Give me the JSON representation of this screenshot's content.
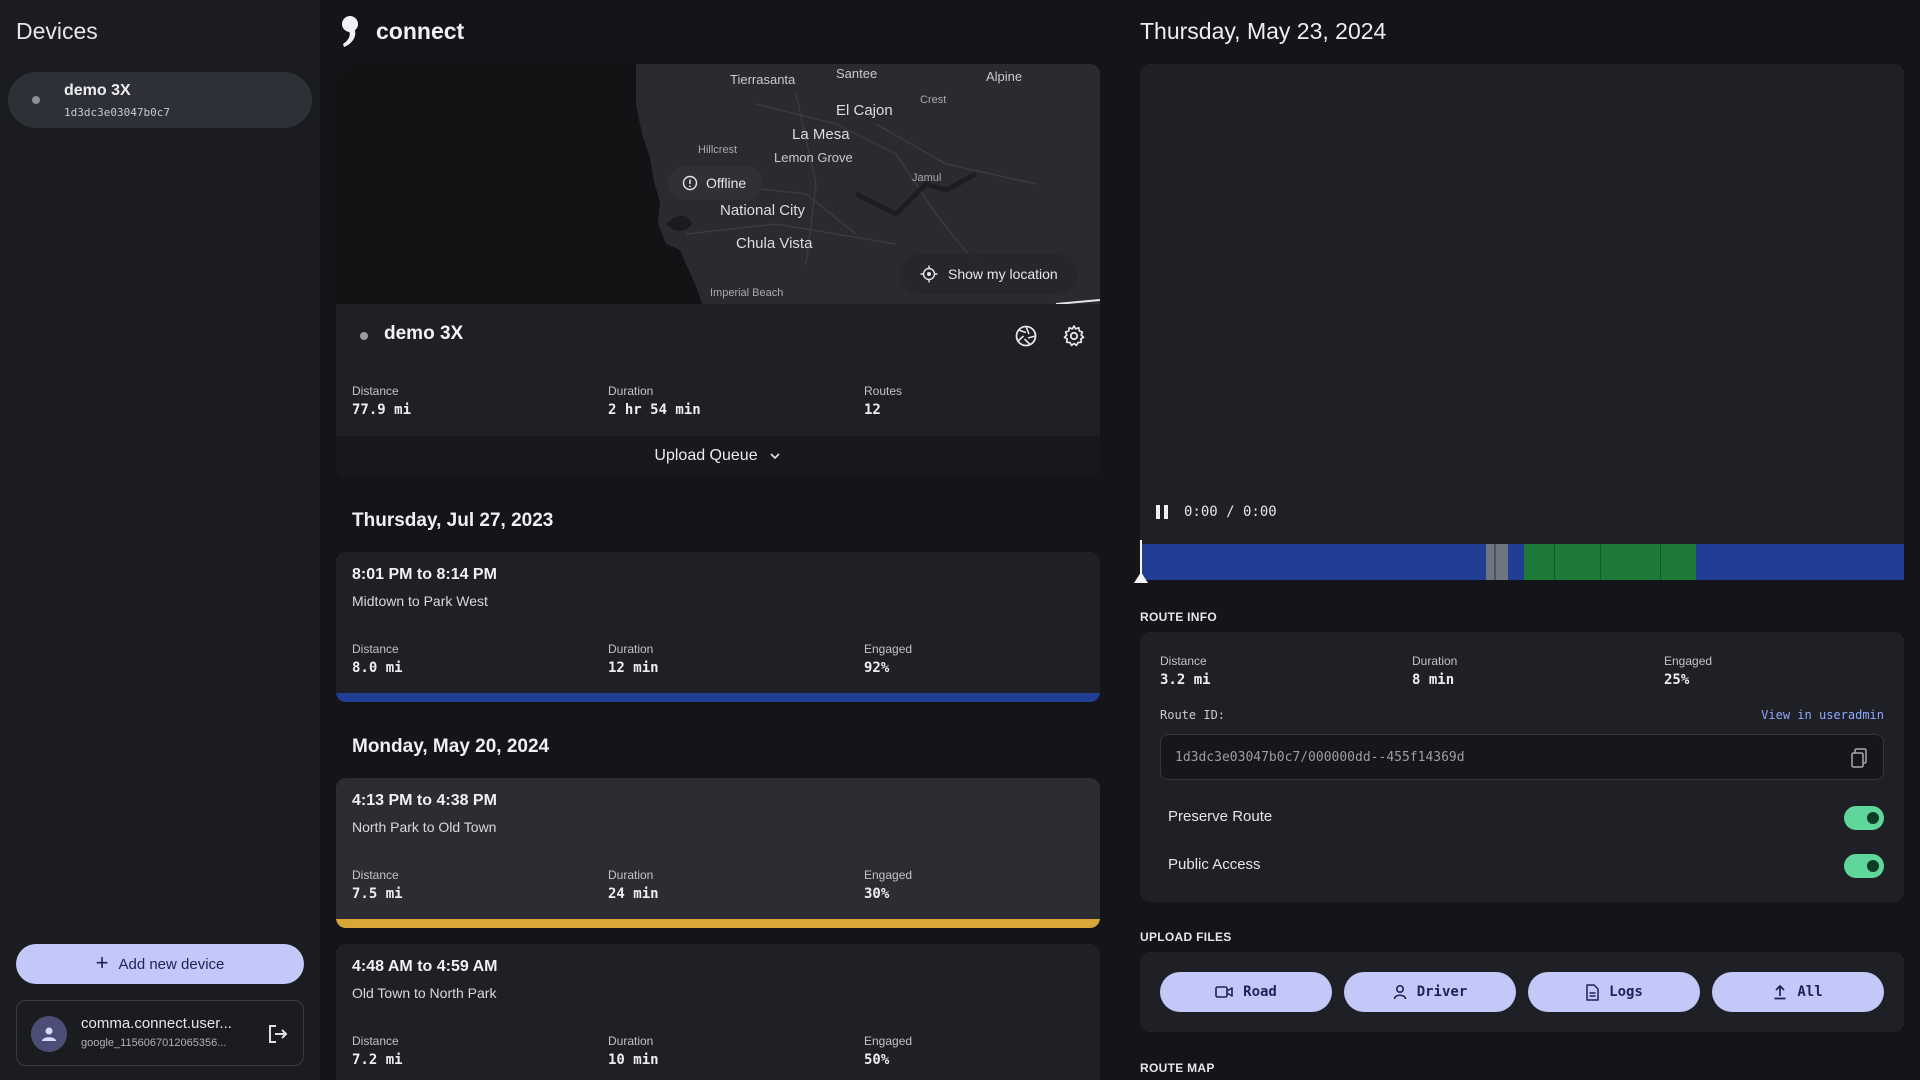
{
  "sidebar": {
    "title": "Devices",
    "devices": [
      {
        "name": "demo 3X",
        "dongle_id": "1d3dc3e03047b0c7"
      }
    ],
    "add_device_label": "Add new device",
    "user": {
      "name": "comma.connect.user...",
      "id": "google_1156067012065356..."
    }
  },
  "brand": {
    "name": "connect"
  },
  "map": {
    "labels": [
      "Tierrasanta",
      "Santee",
      "Alpine",
      "Crest",
      "El Cajon",
      "Hillcrest",
      "La Mesa",
      "Lemon Grove",
      "Jamul",
      "National City",
      "Chula Vista",
      "Imperial Beach"
    ],
    "offline_label": "Offline",
    "show_location_label": "Show my location"
  },
  "device_card": {
    "name": "demo 3X",
    "stats": [
      {
        "label": "Distance",
        "value": "77.9 mi"
      },
      {
        "label": "Duration",
        "value": "2 hr 54 min"
      },
      {
        "label": "Routes",
        "value": "12"
      }
    ],
    "upload_queue_label": "Upload Queue"
  },
  "days": [
    {
      "heading": "Thursday, Jul 27, 2023",
      "routes": [
        {
          "time": "8:01 PM to 8:14 PM",
          "places": "Midtown to Park West",
          "distance": "8.0 mi",
          "duration": "12 min",
          "engaged": "92%",
          "bar_color": "#213d94"
        }
      ]
    },
    {
      "heading": "Monday, May 20, 2024",
      "routes": [
        {
          "time": "4:13 PM to 4:38 PM",
          "places": "North Park to Old Town",
          "distance": "7.5 mi",
          "duration": "24 min",
          "engaged": "30%",
          "bar_color": "#d9a63a"
        },
        {
          "time": "4:48 AM to 4:59 AM",
          "places": "Old Town to North Park",
          "distance": "7.2 mi",
          "duration": "10 min",
          "engaged": "50%",
          "bar_color": "#213d94"
        }
      ]
    }
  ],
  "stat_labels": {
    "distance": "Distance",
    "duration": "Duration",
    "engaged": "Engaged"
  },
  "detail": {
    "date": "Thursday, May 23, 2024",
    "video_time": "0:00 / 0:00",
    "route_info_label": "ROUTE INFO",
    "stats": [
      {
        "label": "Distance",
        "value": "3.2 mi"
      },
      {
        "label": "Duration",
        "value": "8 min"
      },
      {
        "label": "Engaged",
        "value": "25%"
      }
    ],
    "route_id_label": "Route ID:",
    "useradmin_label": "View in useradmin",
    "route_id": "1d3dc3e03047b0c7/000000dd--455f14369d",
    "toggles": [
      {
        "label": "Preserve Route",
        "on": true
      },
      {
        "label": "Public Access",
        "on": true
      }
    ],
    "upload_files_label": "UPLOAD FILES",
    "upload_buttons": [
      "Road",
      "Driver",
      "Logs",
      "All"
    ],
    "route_map_label": "ROUTE MAP"
  },
  "colors": {
    "accent": "#c3c8f8",
    "timeline_blue": "#213d94",
    "timeline_green": "#1f7a3a",
    "timeline_gray": "#6e7480",
    "toggle_on": "#5fd79b"
  }
}
